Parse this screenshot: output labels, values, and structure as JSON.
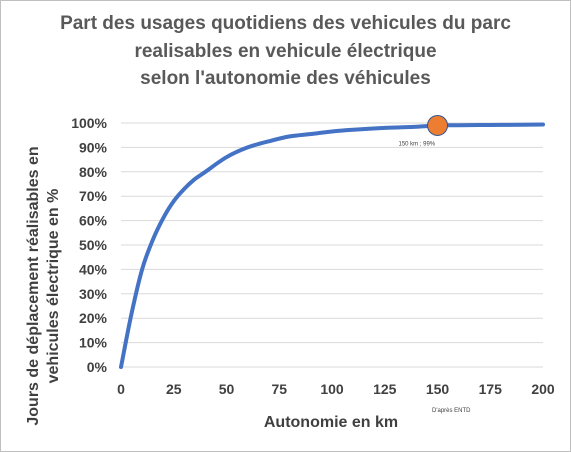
{
  "chart_data": {
    "type": "line",
    "title_lines": [
      "Part des usages quotidiens des vehicules du parc",
      "realisables en vehicule électrique",
      "selon l'autonomie des véhicules"
    ],
    "xlabel": "Autonomie en km",
    "ylabel_lines": [
      "Jours de déplacement réalisables en",
      "vehicules électrique en %"
    ],
    "xlim": [
      0,
      200
    ],
    "ylim": [
      0,
      100
    ],
    "x_ticks": [
      "0",
      "25",
      "50",
      "75",
      "100",
      "125",
      "150",
      "175",
      "200"
    ],
    "y_ticks": [
      "0%",
      "10%",
      "20%",
      "30%",
      "40%",
      "50%",
      "60%",
      "70%",
      "80%",
      "90%",
      "100%"
    ],
    "grid": "horizontal",
    "series": [
      {
        "color": "#4472c4",
        "x": [
          0,
          5,
          10,
          15,
          20,
          25,
          30,
          35,
          40,
          50,
          60,
          70,
          80,
          90,
          100,
          110,
          125,
          140,
          150,
          160,
          175,
          190,
          200
        ],
        "y": [
          0,
          22,
          40,
          52,
          61,
          68,
          73,
          77,
          80,
          86,
          90,
          92.5,
          94.5,
          95.5,
          96.5,
          97.2,
          98,
          98.5,
          99,
          99.1,
          99.2,
          99.3,
          99.4
        ]
      }
    ],
    "highlight": {
      "x": 150,
      "y": 99,
      "label": "150 km ; 99%",
      "color": "#ed7d31"
    },
    "source_note": "D'après ENTD"
  }
}
